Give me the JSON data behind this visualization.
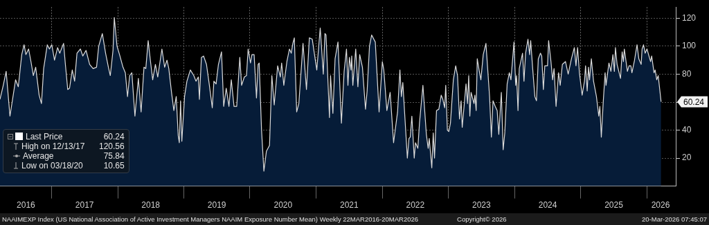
{
  "chart_data": {
    "type": "area",
    "x": [
      "2016-03-22",
      "2016-04-09",
      "2016-04-25",
      "2016-05-16",
      "2016-06-16",
      "2016-07-01",
      "2016-07-20",
      "2016-08-02",
      "2016-08-12",
      "2016-08-27",
      "2016-09-09",
      "2016-09-22",
      "2016-10-05",
      "2016-10-24",
      "2016-11-06",
      "2016-11-18",
      "2016-12-08",
      "2016-12-20",
      "2017-01-02",
      "2017-01-17",
      "2017-02-03",
      "2017-02-15",
      "2017-03-08",
      "2017-03-18",
      "2017-03-31",
      "2017-04-10",
      "2017-04-25",
      "2017-05-08",
      "2017-05-21",
      "2017-06-09",
      "2017-06-22",
      "2017-07-10",
      "2017-07-30",
      "2017-08-18",
      "2017-09-06",
      "2017-09-18",
      "2017-10-08",
      "2017-10-26",
      "2017-11-12",
      "2017-11-21",
      "2017-12-06",
      "2017-12-13",
      "2017-12-28",
      "2018-01-11",
      "2018-01-30",
      "2018-02-12",
      "2018-02-24",
      "2018-03-08",
      "2018-03-20",
      "2018-04-06",
      "2018-04-25",
      "2018-05-10",
      "2018-05-26",
      "2018-06-05",
      "2018-06-18",
      "2018-07-01",
      "2018-07-13",
      "2018-07-28",
      "2018-08-10",
      "2018-09-02",
      "2018-09-17",
      "2018-09-30",
      "2018-10-10",
      "2018-10-25",
      "2018-11-07",
      "2018-11-20",
      "2018-12-01",
      "2018-12-07",
      "2018-12-14",
      "2018-12-21",
      "2019-01-05",
      "2019-01-18",
      "2019-02-06",
      "2019-02-25",
      "2019-03-09",
      "2019-03-22",
      "2019-03-28",
      "2019-04-08",
      "2019-04-20",
      "2019-05-06",
      "2019-05-21",
      "2019-06-07",
      "2019-06-16",
      "2019-06-28",
      "2019-07-11",
      "2019-07-28",
      "2019-08-09",
      "2019-08-23",
      "2019-09-07",
      "2019-09-20",
      "2019-10-05",
      "2019-10-20",
      "2019-11-06",
      "2019-11-16",
      "2019-12-01",
      "2019-12-13",
      "2019-12-22",
      "2020-01-04",
      "2020-01-12",
      "2020-01-24",
      "2020-02-06",
      "2020-02-15",
      "2020-02-21",
      "2020-03-05",
      "2020-03-18",
      "2020-04-01",
      "2020-04-18",
      "2020-05-01",
      "2020-05-14",
      "2020-06-02",
      "2020-06-17",
      "2020-06-24",
      "2020-07-06",
      "2020-07-23",
      "2020-08-06",
      "2020-08-16",
      "2020-08-25",
      "2020-09-02",
      "2020-09-15",
      "2020-09-27",
      "2020-10-20",
      "2020-11-08",
      "2020-11-24",
      "2020-12-10",
      "2021-01-04",
      "2021-01-23",
      "2021-02-09",
      "2021-02-18",
      "2021-02-24",
      "2021-03-15",
      "2021-03-21",
      "2021-04-03",
      "2021-04-15",
      "2021-05-01",
      "2021-05-20",
      "2021-06-04",
      "2021-06-17",
      "2021-06-25",
      "2021-07-03",
      "2021-07-12",
      "2021-07-16",
      "2021-07-22",
      "2021-08-07",
      "2021-08-19",
      "2021-08-29",
      "2021-09-13",
      "2021-09-30",
      "2021-10-09",
      "2021-10-22",
      "2021-11-03",
      "2021-11-23",
      "2021-12-14",
      "2022-01-01",
      "2022-01-09",
      "2022-01-26",
      "2022-02-13",
      "2022-03-04",
      "2022-03-26",
      "2022-04-08",
      "2022-04-16",
      "2022-04-24",
      "2022-05-19",
      "2022-05-28",
      "2022-06-04",
      "2022-06-13",
      "2022-06-26",
      "2022-07-03",
      "2022-07-16",
      "2022-07-25",
      "2022-08-13",
      "2022-09-01",
      "2022-09-11",
      "2022-09-17",
      "2022-10-01",
      "2022-10-09",
      "2022-10-16",
      "2022-10-27",
      "2022-11-09",
      "2022-11-22",
      "2022-12-01",
      "2022-12-11",
      "2022-12-17",
      "2022-12-26",
      "2023-01-03",
      "2023-01-12",
      "2023-01-28",
      "2023-02-10",
      "2023-02-20",
      "2023-03-03",
      "2023-03-12",
      "2023-03-18",
      "2023-04-08",
      "2023-04-16",
      "2023-04-23",
      "2023-04-29",
      "2023-05-06",
      "2023-05-22",
      "2023-05-27",
      "2023-06-03",
      "2023-06-09",
      "2023-06-19",
      "2023-06-29",
      "2023-07-12",
      "2023-07-27",
      "2023-08-16",
      "2023-08-26",
      "2023-09-04",
      "2023-09-16",
      "2023-09-27",
      "2023-10-06",
      "2023-10-20",
      "2023-10-30",
      "2023-11-08",
      "2023-11-21",
      "2023-12-03",
      "2023-12-12",
      "2023-12-29",
      "2024-01-07",
      "2024-01-12",
      "2024-01-20",
      "2024-01-27",
      "2024-02-14",
      "2024-02-22",
      "2024-03-02",
      "2024-03-15",
      "2024-03-24",
      "2024-03-30",
      "2024-04-10",
      "2024-04-22",
      "2024-05-01",
      "2024-05-11",
      "2024-05-23",
      "2024-05-30",
      "2024-06-08",
      "2024-06-16",
      "2024-07-01",
      "2024-07-07",
      "2024-07-20",
      "2024-07-29",
      "2024-08-06",
      "2024-08-17",
      "2024-08-31",
      "2024-09-09",
      "2024-09-21",
      "2024-10-08",
      "2024-10-23",
      "2024-11-10",
      "2024-11-26",
      "2024-12-05",
      "2024-12-14",
      "2024-12-24",
      "2025-01-08",
      "2025-01-21",
      "2025-01-27",
      "2025-02-05",
      "2025-02-12",
      "2025-02-18",
      "2025-02-28",
      "2025-03-12",
      "2025-03-28",
      "2025-04-10",
      "2025-04-16",
      "2025-04-24",
      "2025-05-05",
      "2025-05-15",
      "2025-05-20",
      "2025-06-05",
      "2025-06-16",
      "2025-06-27",
      "2025-07-05",
      "2025-07-11",
      "2025-07-20",
      "2025-08-08",
      "2025-08-17",
      "2025-08-24",
      "2025-08-29",
      "2025-09-15",
      "2025-09-24",
      "2025-10-04",
      "2025-10-10",
      "2025-10-23",
      "2025-11-07",
      "2025-11-17",
      "2025-11-30",
      "2025-12-05",
      "2025-12-13",
      "2025-12-22",
      "2026-01-01",
      "2026-01-12",
      "2026-01-21",
      "2026-01-27",
      "2026-02-09",
      "2026-02-15",
      "2026-02-24",
      "2026-03-04",
      "2026-03-20"
    ],
    "series": [
      {
        "name": "Last Price",
        "color": "#061c38",
        "values": [
          62,
          72,
          82,
          50,
          76,
          71,
          94,
          101,
          94,
          98,
          89,
          79,
          85,
          65,
          59,
          84,
          101,
          98,
          101,
          90,
          99,
          95,
          102,
          87,
          69,
          70,
          83,
          75,
          95,
          98,
          93,
          97,
          87,
          84,
          85,
          100,
          109,
          95,
          84,
          79,
          97,
          120.56,
          100,
          94,
          85,
          81,
          64,
          79,
          81,
          50,
          77,
          53,
          85,
          84,
          104,
          89,
          76,
          87,
          78,
          98,
          85,
          90,
          84,
          67,
          54,
          64,
          36,
          31,
          61,
          32,
          64,
          75,
          83,
          79,
          75,
          78,
          62,
          92,
          93,
          87,
          73,
          56,
          75,
          73,
          87,
          96,
          57,
          70,
          57,
          76,
          57,
          57,
          92,
          72,
          78,
          79,
          98,
          88,
          94,
          94,
          63,
          87,
          88,
          40,
          10.65,
          25,
          29,
          79,
          58,
          86,
          78,
          88,
          72,
          89,
          98,
          95,
          102,
          106,
          53,
          59,
          102,
          69,
          106,
          105,
          83,
          113,
          80,
          109,
          108,
          49,
          79,
          52,
          91,
          103,
          45,
          82,
          98,
          72,
          92,
          83,
          93,
          72,
          98,
          71,
          94,
          85,
          55,
          68,
          100,
          108,
          103,
          53,
          89,
          83,
          54,
          67,
          31,
          53,
          83,
          64,
          74,
          20,
          34,
          35,
          50,
          20,
          31,
          27,
          45,
          72,
          37,
          27,
          34,
          13,
          38,
          20,
          54,
          55,
          65,
          62,
          56,
          72,
          40,
          39,
          45,
          76,
          86,
          79,
          48,
          61,
          42,
          73,
          59,
          79,
          50,
          67,
          59,
          65,
          54,
          91,
          83,
          76,
          94,
          102,
          64,
          35,
          61,
          57,
          54,
          37,
          67,
          26,
          38,
          73,
          81,
          76,
          103,
          72,
          79,
          54,
          84,
          95,
          75,
          95,
          105,
          94,
          104,
          84,
          64,
          61,
          91,
          95,
          93,
          69,
          86,
          86,
          104,
          89,
          76,
          84,
          57,
          81,
          72,
          87,
          89,
          80,
          91,
          99,
          86,
          99,
          81,
          65,
          75,
          86,
          68,
          85,
          76,
          91,
          75,
          64,
          50,
          57,
          35,
          61,
          81,
          72,
          88,
          82,
          94,
          82,
          99,
          87,
          77,
          96,
          89,
          98,
          82,
          86,
          86,
          81,
          89,
          101,
          91,
          87,
          98,
          101,
          95,
          98,
          93,
          89,
          93,
          81,
          83,
          76,
          79,
          60.24
        ]
      }
    ],
    "xlim": [
      "2016-03-22",
      "2026-06-09"
    ],
    "xticks": [
      {
        "value": "2016-08-12",
        "label": "2016"
      },
      {
        "value": "2017-01-01",
        "label": null
      },
      {
        "value": "2017-07-02",
        "label": "2017"
      },
      {
        "value": "2018-01-01",
        "label": null
      },
      {
        "value": "2018-07-02",
        "label": "2018"
      },
      {
        "value": "2019-01-01",
        "label": null
      },
      {
        "value": "2019-07-02",
        "label": "2019"
      },
      {
        "value": "2020-01-01",
        "label": null
      },
      {
        "value": "2020-07-02",
        "label": "2020"
      },
      {
        "value": "2021-01-01",
        "label": null
      },
      {
        "value": "2021-07-02",
        "label": "2021"
      },
      {
        "value": "2022-01-01",
        "label": null
      },
      {
        "value": "2022-07-02",
        "label": "2022"
      },
      {
        "value": "2023-01-01",
        "label": null
      },
      {
        "value": "2023-07-02",
        "label": "2023"
      },
      {
        "value": "2024-01-01",
        "label": null
      },
      {
        "value": "2024-07-02",
        "label": "2024"
      },
      {
        "value": "2025-01-01",
        "label": null
      },
      {
        "value": "2025-07-02",
        "label": "2025"
      },
      {
        "value": "2026-01-01",
        "label": null
      },
      {
        "value": "2026-03-17",
        "label": "2026"
      }
    ],
    "ylim": [
      0,
      128
    ],
    "yticks": [
      20,
      40,
      {
        "value": 60,
        "label": null
      },
      80,
      100,
      120
    ],
    "grid": true,
    "legend": "bottom left",
    "annotations": [
      "60.24",
      "High on 12/13/17",
      "120.56",
      "Average",
      "75.84",
      "Low on 03/18/20",
      "10.65",
      "NAAIMEXP Index (US National Association of Active Investment Managers NAAIM Exposure Number Mean) Weekly 22MAR2016-20MAR2026",
      "Copyright© 2026",
      "20-Mar-2026 07:45:07",
      {
        "text": "60.24",
        "x": "2026-03-20",
        "y": 60.24
      }
    ]
  }
}
